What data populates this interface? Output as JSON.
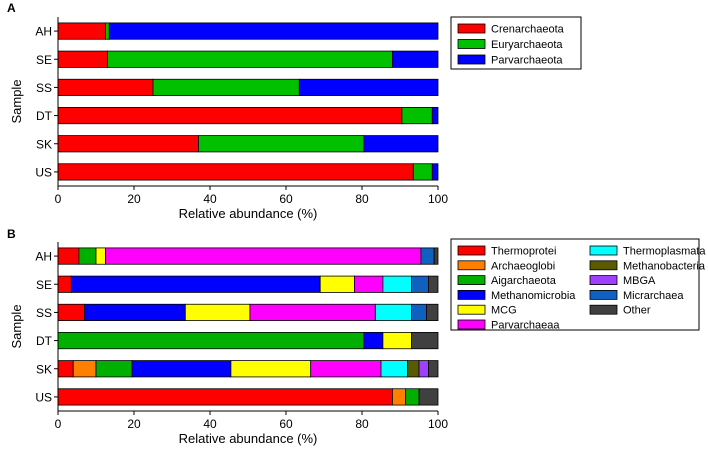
{
  "chart_data": [
    {
      "type": "bar",
      "orientation": "horizontal",
      "stacked": true,
      "panel_label": "A",
      "categories": [
        "AH",
        "SE",
        "SS",
        "DT",
        "SK",
        "US"
      ],
      "series": [
        {
          "name": "Crenarchaeota",
          "color": "#ff0000",
          "values": [
            12.5,
            13,
            25,
            90.5,
            37,
            93.5
          ]
        },
        {
          "name": "Euryarchaeota",
          "color": "#00c000",
          "values": [
            1,
            75,
            38.5,
            8,
            43.5,
            5
          ]
        },
        {
          "name": "Parvarchaeota",
          "color": "#0000ff",
          "values": [
            86.5,
            12,
            36.5,
            1.5,
            19.5,
            1.5
          ]
        }
      ],
      "xlabel": "Relative abundance (%)",
      "ylabel": "Sample",
      "xlim": [
        0,
        100
      ],
      "xticks": [
        0,
        20,
        40,
        60,
        80,
        100
      ],
      "legend_position": "right",
      "grid": false
    },
    {
      "type": "bar",
      "orientation": "horizontal",
      "stacked": true,
      "panel_label": "B",
      "categories": [
        "AH",
        "SE",
        "SS",
        "DT",
        "SK",
        "US"
      ],
      "series": [
        {
          "name": "Thermoprotei",
          "color": "#ff0000",
          "values": [
            5.5,
            3.5,
            7,
            0,
            4,
            88
          ]
        },
        {
          "name": "Archaeoglobi",
          "color": "#ff8000",
          "values": [
            0,
            0,
            0,
            0,
            6,
            3.5
          ]
        },
        {
          "name": "Aigarchaeota",
          "color": "#00b000",
          "values": [
            4.5,
            0,
            0,
            80.5,
            9.5,
            3.5
          ]
        },
        {
          "name": "Methanomicrobia",
          "color": "#0000ff",
          "values": [
            0,
            65.5,
            26.5,
            5,
            26,
            0
          ]
        },
        {
          "name": "MCG",
          "color": "#ffff00",
          "values": [
            2.5,
            9,
            17,
            7.5,
            21,
            0
          ]
        },
        {
          "name": "Parvarchaeaa",
          "color": "#ff00ff",
          "values": [
            83,
            7.5,
            33,
            0,
            18.5,
            0
          ]
        },
        {
          "name": "Thermoplasmata",
          "color": "#00ffff",
          "values": [
            0,
            7.5,
            9.5,
            0,
            7,
            0
          ]
        },
        {
          "name": "Methanobacteria",
          "color": "#5a5a00",
          "values": [
            0,
            0,
            0,
            0,
            3,
            0
          ]
        },
        {
          "name": "MBGA",
          "color": "#a040ff",
          "values": [
            0,
            0,
            0,
            0,
            2.5,
            0
          ]
        },
        {
          "name": "Micrarchaea",
          "color": "#1060c0",
          "values": [
            3.5,
            4.5,
            4,
            0,
            0,
            0
          ]
        },
        {
          "name": "Other",
          "color": "#404040",
          "values": [
            1,
            2.5,
            3,
            7,
            2.5,
            5
          ]
        }
      ],
      "xlabel": "Relative abundance (%)",
      "ylabel": "Sample",
      "xlim": [
        0,
        100
      ],
      "xticks": [
        0,
        20,
        40,
        60,
        80,
        100
      ],
      "legend_position": "right",
      "grid": false
    }
  ]
}
